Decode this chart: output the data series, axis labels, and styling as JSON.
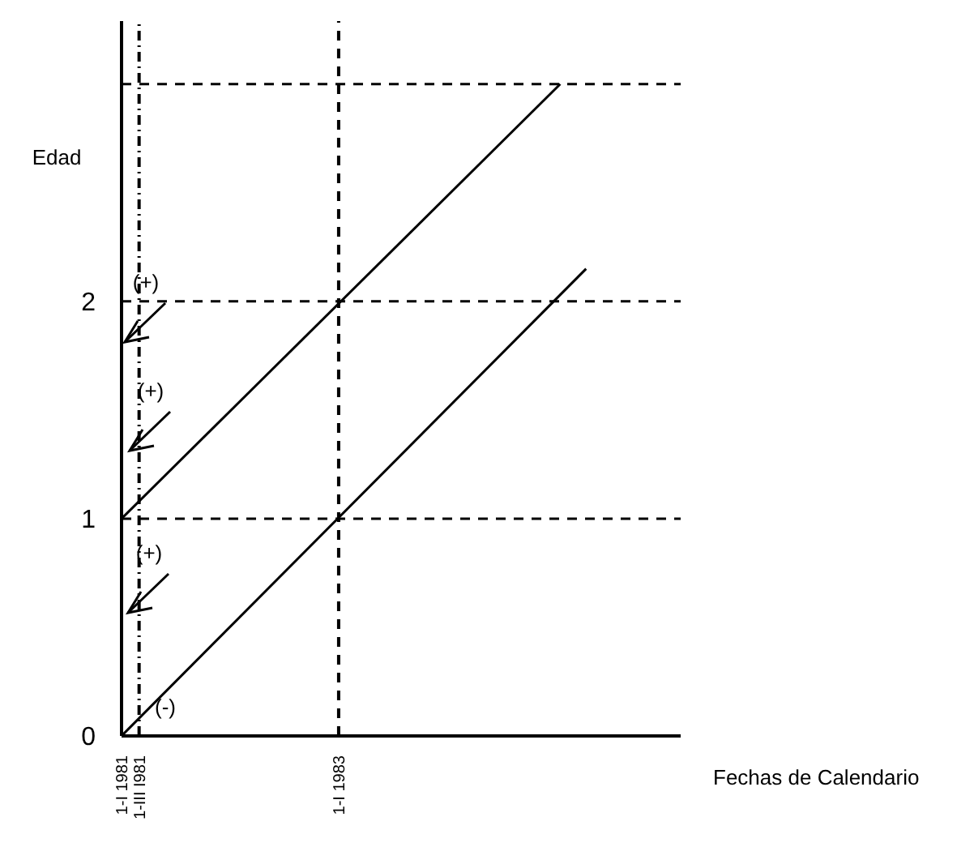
{
  "chart_data": {
    "type": "line",
    "xlabel": "Fechas de Calendario",
    "ylabel": "Edad",
    "xlim": [
      "1981-01-01",
      "1986-02-24"
    ],
    "ylim": [
      0,
      3.29
    ],
    "xticks": [
      {
        "value": "1981-01-01",
        "label": "1-I 1981"
      },
      {
        "value": "1981-03-01",
        "label": "1-III I981"
      },
      {
        "value": "1983-01-01",
        "label": "1-I 1983"
      }
    ],
    "yticks": [
      0,
      1,
      2
    ],
    "grid": false,
    "legend": false,
    "marker": "none",
    "line_style": "solid",
    "series": [
      {
        "color": "#000000",
        "x": [
          "1981-01-01",
          "1985-04-12"
        ],
        "values": [
          0,
          2.15
        ]
      },
      {
        "color": "#000000",
        "x": [
          "1981-01-01",
          "1985-01-15"
        ],
        "values": [
          1,
          3.0
        ]
      }
    ],
    "ref_lines": [
      {
        "axis": "y",
        "value": 1,
        "color": "#000000",
        "line_style": "dashed"
      },
      {
        "axis": "y",
        "value": 2,
        "color": "#000000",
        "line_style": "dashed"
      },
      {
        "axis": "y",
        "value": 3,
        "color": "#000000",
        "line_style": "dashed"
      },
      {
        "axis": "x",
        "value": "1981-03-01",
        "color": "#000000",
        "line_style": "dotted"
      },
      {
        "axis": "x",
        "value": "1983-01-01",
        "color": "#000000",
        "line_style": "dashed"
      }
    ],
    "annotations": [
      "(+)",
      "(+)",
      "(+)",
      "(-)"
    ]
  }
}
